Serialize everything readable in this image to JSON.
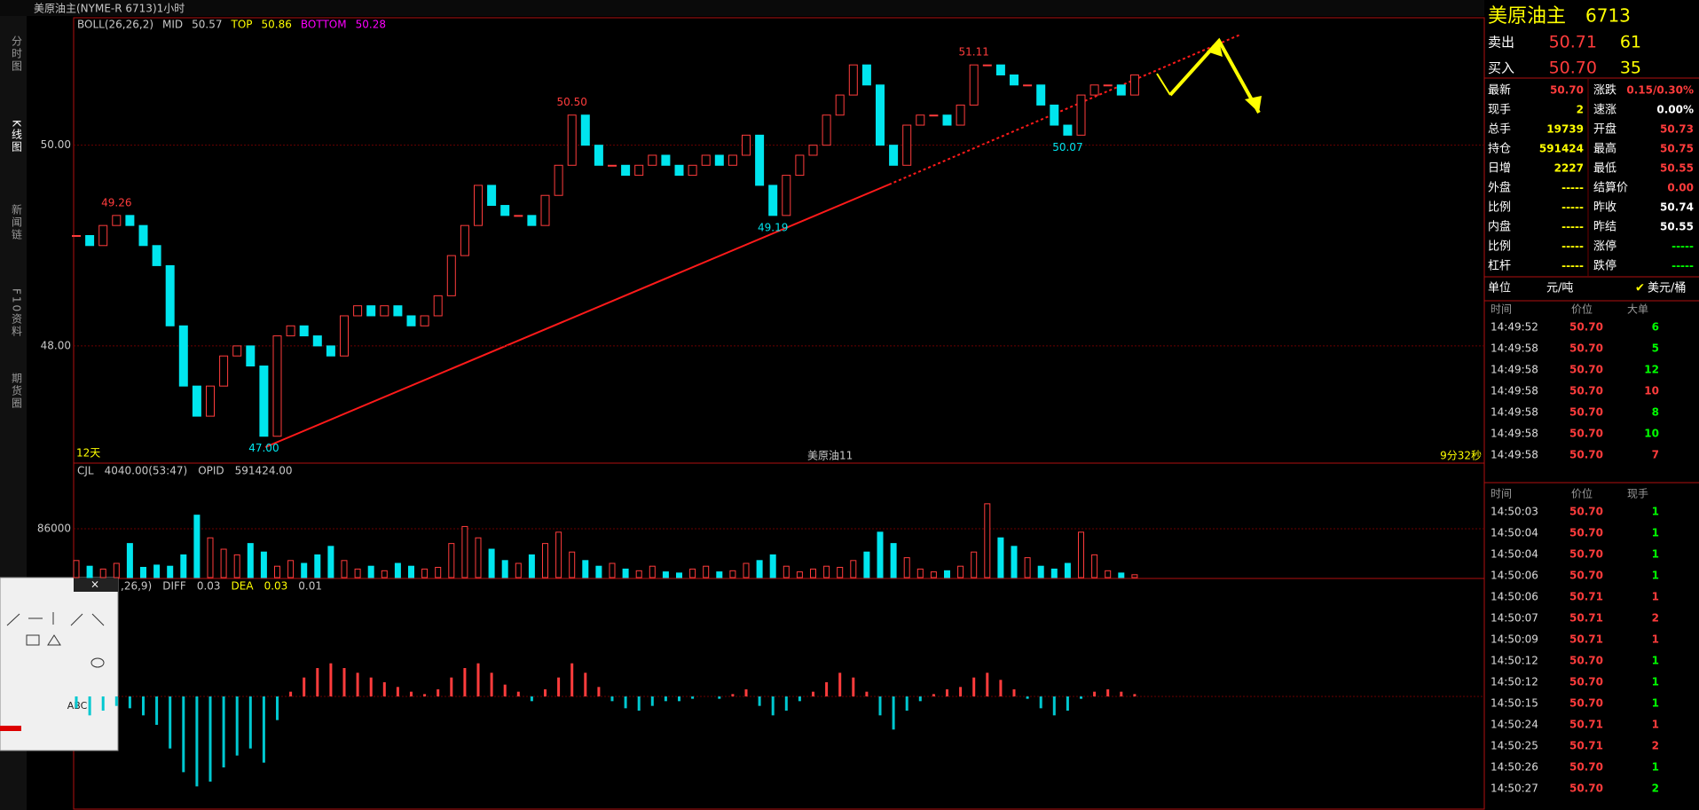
{
  "window": {
    "title": "美原油主(NYME-R 6713)1小时",
    "tabs": [
      "分时图",
      "K线图",
      "新闻链",
      "F10资料",
      "期货圈"
    ]
  },
  "chart_data": [
    {
      "type": "candlestick",
      "indicator": {
        "name": "BOLL(26,26,2)",
        "mid_label": "MID",
        "mid": "50.57",
        "top_label": "TOP",
        "top": "50.86",
        "bottom_label": "BOTTOM",
        "bottom": "50.28"
      },
      "closes": [
        49.1,
        49.0,
        49.2,
        49.3,
        49.2,
        49.0,
        48.8,
        48.2,
        47.6,
        47.3,
        47.6,
        47.9,
        48.0,
        47.8,
        47.1,
        48.1,
        48.2,
        48.1,
        48.0,
        47.9,
        48.3,
        48.4,
        48.3,
        48.4,
        48.3,
        48.2,
        48.3,
        48.5,
        48.9,
        49.2,
        49.6,
        49.4,
        49.3,
        49.3,
        49.2,
        49.5,
        49.8,
        50.3,
        50.0,
        49.8,
        49.8,
        49.7,
        49.8,
        49.9,
        49.8,
        49.7,
        49.8,
        49.9,
        49.8,
        49.9,
        50.1,
        49.6,
        49.3,
        49.7,
        49.9,
        50.0,
        50.3,
        50.5,
        50.8,
        50.6,
        50.0,
        49.8,
        50.2,
        50.3,
        50.3,
        50.2,
        50.4,
        50.8,
        50.8,
        50.7,
        50.6,
        50.6,
        50.4,
        50.2,
        50.1,
        50.5,
        50.6,
        50.6,
        50.5,
        50.7
      ],
      "up_color": "#ff3c3c",
      "down_color": "#00e5ee",
      "ylim": [
        46.85,
        51.27
      ],
      "yticks": [
        {
          "value": 48,
          "label": "48.00"
        },
        {
          "value": 50,
          "label": "50.00"
        }
      ],
      "annotations": [
        "49.26",
        "50.50",
        "51.11",
        "47.00",
        "49.19",
        "50.07"
      ],
      "footer": {
        "period": "12天",
        "name": "美原油11",
        "countdown": "9分32秒"
      }
    },
    {
      "type": "bar",
      "indicator": {
        "name": "CJL",
        "value": "4040.00(53:47)",
        "oi_label": "OPID",
        "oi": "591424.00"
      },
      "values": [
        30000,
        20000,
        15000,
        25000,
        60000,
        18000,
        22000,
        20000,
        40000,
        110000,
        70000,
        50000,
        40000,
        60000,
        45000,
        20000,
        30000,
        25000,
        40000,
        55000,
        30000,
        15000,
        20000,
        12000,
        25000,
        20000,
        15000,
        18000,
        60000,
        90000,
        70000,
        50000,
        30000,
        25000,
        40000,
        60000,
        80000,
        45000,
        30000,
        20000,
        25000,
        15000,
        12000,
        20000,
        10000,
        8000,
        15000,
        20000,
        10000,
        12000,
        25000,
        30000,
        40000,
        20000,
        10000,
        15000,
        20000,
        18000,
        30000,
        45000,
        80000,
        60000,
        35000,
        15000,
        10000,
        12000,
        20000,
        45000,
        130000,
        70000,
        55000,
        35000,
        20000,
        15000,
        25000,
        80000,
        40000,
        12000,
        8000,
        5000
      ],
      "ylim": [
        0,
        197000
      ],
      "yticks": [
        86000
      ]
    },
    {
      "type": "bar",
      "indicator": {
        "name": ",26,9)",
        "diff_label": "DIFF",
        "diff": "0.03",
        "dea_label": "DEA",
        "dea": "0.03",
        "macd": "0.01"
      },
      "values": [
        -0.05,
        -0.08,
        -0.06,
        -0.04,
        -0.05,
        -0.08,
        -0.12,
        -0.22,
        -0.32,
        -0.38,
        -0.36,
        -0.3,
        -0.25,
        -0.22,
        -0.28,
        -0.1,
        0.02,
        0.08,
        0.12,
        0.14,
        0.12,
        0.1,
        0.08,
        0.06,
        0.04,
        0.02,
        0.01,
        0.03,
        0.08,
        0.12,
        0.14,
        0.1,
        0.05,
        0.02,
        -0.02,
        0.03,
        0.08,
        0.14,
        0.1,
        0.04,
        -0.02,
        -0.05,
        -0.06,
        -0.04,
        -0.02,
        -0.02,
        -0.01,
        0.0,
        -0.01,
        0.01,
        0.03,
        -0.04,
        -0.08,
        -0.06,
        -0.02,
        0.02,
        0.06,
        0.1,
        0.08,
        0.02,
        -0.08,
        -0.14,
        -0.06,
        -0.02,
        0.01,
        0.03,
        0.04,
        0.08,
        0.1,
        0.07,
        0.03,
        -0.01,
        -0.05,
        -0.08,
        -0.06,
        -0.01,
        0.02,
        0.03,
        0.02,
        0.01
      ],
      "ylim": [
        -0.45,
        0.45
      ]
    }
  ],
  "quote": {
    "name": "美原油主",
    "code": "6713",
    "ask": {
      "label": "卖出",
      "price": "50.71",
      "qty": "61"
    },
    "bid": {
      "label": "买入",
      "price": "50.70",
      "qty": "35"
    },
    "left": [
      {
        "label": "最新",
        "value": "50.70",
        "color": "#ff3c3c"
      },
      {
        "label": "现手",
        "value": "2",
        "color": "#ffff00"
      },
      {
        "label": "总手",
        "value": "19739",
        "color": "#ffff00"
      },
      {
        "label": "持仓",
        "value": "591424",
        "color": "#ffff00"
      },
      {
        "label": "日增",
        "value": "2227",
        "color": "#ffff00"
      },
      {
        "label": "外盘",
        "value": "-----",
        "color": "#ffff00"
      },
      {
        "label": "比例",
        "value": "-----",
        "color": "#ffff00"
      },
      {
        "label": "内盘",
        "value": "-----",
        "color": "#ffff00"
      },
      {
        "label": "比例",
        "value": "-----",
        "color": "#ffff00"
      },
      {
        "label": "杠杆",
        "value": "-----",
        "color": "#ffff00"
      }
    ],
    "right": [
      {
        "label": "涨跌",
        "value": "0.15/0.30%",
        "color": "#ff3c3c"
      },
      {
        "label": "速涨",
        "value": "0.00%",
        "color": "#ffffff"
      },
      {
        "label": "开盘",
        "value": "50.73",
        "color": "#ff3c3c"
      },
      {
        "label": "最高",
        "value": "50.75",
        "color": "#ff3c3c"
      },
      {
        "label": "最低",
        "value": "50.55",
        "color": "#ff3c3c"
      },
      {
        "label": "结算价",
        "value": "0.00",
        "color": "#ff3c3c"
      },
      {
        "label": "昨收",
        "value": "50.74",
        "color": "#ffffff"
      },
      {
        "label": "昨结",
        "value": "50.55",
        "color": "#ffffff"
      },
      {
        "label": "涨停",
        "value": "-----",
        "color": "#00ff00"
      },
      {
        "label": "跌停",
        "value": "-----",
        "color": "#00ff00"
      }
    ],
    "unit": {
      "label": "单位",
      "value": "元/吨",
      "alt": "美元/桶"
    }
  },
  "big_orders": {
    "header": [
      "时间",
      "价位",
      "大单"
    ],
    "rows": [
      {
        "time": "14:49:52",
        "price": "50.70",
        "qty": "6",
        "color": "#00ff00"
      },
      {
        "time": "14:49:58",
        "price": "50.70",
        "qty": "5",
        "color": "#00ff00"
      },
      {
        "time": "14:49:58",
        "price": "50.70",
        "qty": "12",
        "color": "#00ff00"
      },
      {
        "time": "14:49:58",
        "price": "50.70",
        "qty": "10",
        "color": "#ff3c3c"
      },
      {
        "time": "14:49:58",
        "price": "50.70",
        "qty": "8",
        "color": "#00ff00"
      },
      {
        "time": "14:49:58",
        "price": "50.70",
        "qty": "10",
        "color": "#00ff00"
      },
      {
        "time": "14:49:58",
        "price": "50.70",
        "qty": "7",
        "color": "#ff3c3c"
      }
    ]
  },
  "ticks": {
    "header": [
      "时间",
      "价位",
      "现手"
    ],
    "rows": [
      {
        "time": "14:50:03",
        "price": "50.70",
        "qty": "1",
        "color": "#00ff00"
      },
      {
        "time": "14:50:04",
        "price": "50.70",
        "qty": "1",
        "color": "#00ff00"
      },
      {
        "time": "14:50:04",
        "price": "50.70",
        "qty": "1",
        "color": "#00ff00"
      },
      {
        "time": "14:50:06",
        "price": "50.70",
        "qty": "1",
        "color": "#00ff00"
      },
      {
        "time": "14:50:06",
        "price": "50.71",
        "qty": "1",
        "color": "#ff3c3c"
      },
      {
        "time": "14:50:07",
        "price": "50.71",
        "qty": "2",
        "color": "#ff3c3c"
      },
      {
        "time": "14:50:09",
        "price": "50.71",
        "qty": "1",
        "color": "#ff3c3c"
      },
      {
        "time": "14:50:12",
        "price": "50.70",
        "qty": "1",
        "color": "#00ff00"
      },
      {
        "time": "14:50:12",
        "price": "50.70",
        "qty": "1",
        "color": "#00ff00"
      },
      {
        "time": "14:50:15",
        "price": "50.70",
        "qty": "1",
        "color": "#00ff00"
      },
      {
        "time": "14:50:24",
        "price": "50.71",
        "qty": "1",
        "color": "#ff3c3c"
      },
      {
        "time": "14:50:25",
        "price": "50.71",
        "qty": "2",
        "color": "#ff3c3c"
      },
      {
        "time": "14:50:26",
        "price": "50.70",
        "qty": "1",
        "color": "#00ff00"
      },
      {
        "time": "14:50:27",
        "price": "50.70",
        "qty": "2",
        "color": "#00ff00"
      }
    ]
  },
  "toolbox": {
    "text": "ABC"
  }
}
